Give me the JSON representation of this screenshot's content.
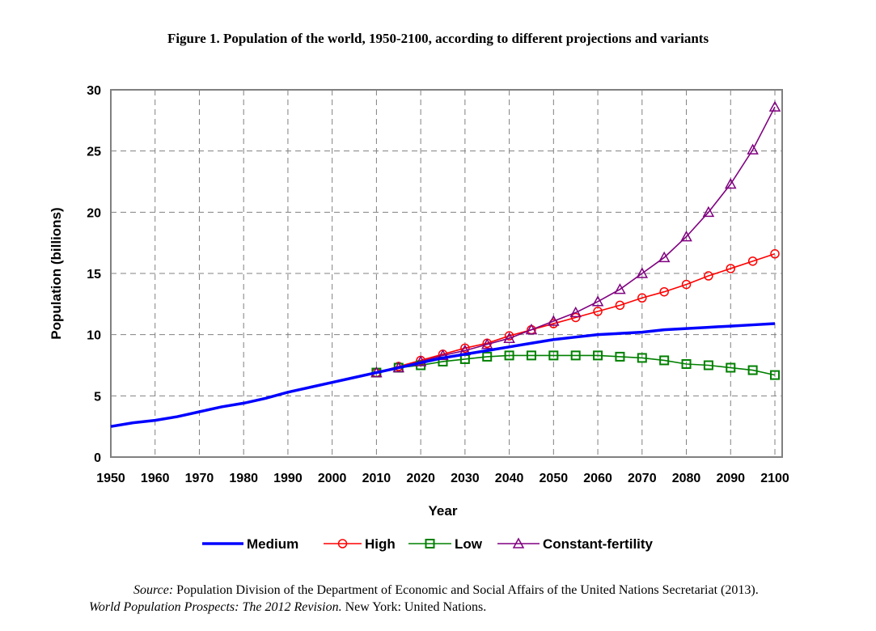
{
  "chart_data": {
    "type": "line",
    "title": "Figure 1.  Population of the world, 1950-2100, according to different projections and variants",
    "xlabel": "Year",
    "ylabel": "Population (billions)",
    "xlim": [
      1950,
      2100
    ],
    "ylim": [
      0,
      30
    ],
    "xticks": [
      1950,
      1960,
      1970,
      1980,
      1990,
      2000,
      2010,
      2020,
      2030,
      2040,
      2050,
      2060,
      2070,
      2080,
      2090,
      2100
    ],
    "yticks": [
      0,
      5,
      10,
      15,
      20,
      25,
      30
    ],
    "grid": true,
    "legend_position": "bottom",
    "series": [
      {
        "name": "Medium",
        "color": "#0000ff",
        "marker": "none",
        "x": [
          1950,
          1955,
          1960,
          1965,
          1970,
          1975,
          1980,
          1985,
          1990,
          1995,
          2000,
          2005,
          2010,
          2015,
          2020,
          2025,
          2030,
          2035,
          2040,
          2045,
          2050,
          2055,
          2060,
          2065,
          2070,
          2075,
          2080,
          2085,
          2090,
          2095,
          2100
        ],
        "values": [
          2.5,
          2.8,
          3.0,
          3.3,
          3.7,
          4.1,
          4.4,
          4.8,
          5.3,
          5.7,
          6.1,
          6.5,
          6.9,
          7.3,
          7.7,
          8.1,
          8.4,
          8.7,
          9.0,
          9.3,
          9.6,
          9.8,
          10.0,
          10.1,
          10.2,
          10.4,
          10.5,
          10.6,
          10.7,
          10.8,
          10.9
        ]
      },
      {
        "name": "High",
        "color": "#ff0000",
        "marker": "circle",
        "x": [
          2010,
          2015,
          2020,
          2025,
          2030,
          2035,
          2040,
          2045,
          2050,
          2055,
          2060,
          2065,
          2070,
          2075,
          2080,
          2085,
          2090,
          2095,
          2100
        ],
        "values": [
          6.9,
          7.4,
          7.9,
          8.4,
          8.9,
          9.3,
          9.9,
          10.4,
          10.9,
          11.4,
          11.9,
          12.4,
          13.0,
          13.5,
          14.1,
          14.8,
          15.4,
          16.0,
          16.6
        ]
      },
      {
        "name": "Low",
        "color": "#008000",
        "marker": "square",
        "x": [
          2010,
          2015,
          2020,
          2025,
          2030,
          2035,
          2040,
          2045,
          2050,
          2055,
          2060,
          2065,
          2070,
          2075,
          2080,
          2085,
          2090,
          2095,
          2100
        ],
        "values": [
          6.9,
          7.3,
          7.5,
          7.8,
          8.0,
          8.2,
          8.3,
          8.3,
          8.3,
          8.3,
          8.3,
          8.2,
          8.1,
          7.9,
          7.6,
          7.5,
          7.3,
          7.1,
          6.7
        ]
      },
      {
        "name": "Constant-fertility",
        "color": "#800080",
        "marker": "triangle",
        "x": [
          2010,
          2015,
          2020,
          2025,
          2030,
          2035,
          2040,
          2045,
          2050,
          2055,
          2060,
          2065,
          2070,
          2075,
          2080,
          2085,
          2090,
          2095,
          2100
        ],
        "values": [
          6.9,
          7.3,
          7.8,
          8.3,
          8.7,
          9.2,
          9.7,
          10.4,
          11.1,
          11.8,
          12.7,
          13.7,
          15.0,
          16.3,
          18.0,
          20.0,
          22.3,
          25.1,
          28.6
        ]
      }
    ]
  },
  "source": {
    "label": "Source:",
    "text1": " Population Division of the Department of Economic and Social Affairs of the United Nations Secretariat (2013).",
    "italic": "World Population Prospects: The 2012 Revision.",
    "text2": " New York: United Nations."
  }
}
